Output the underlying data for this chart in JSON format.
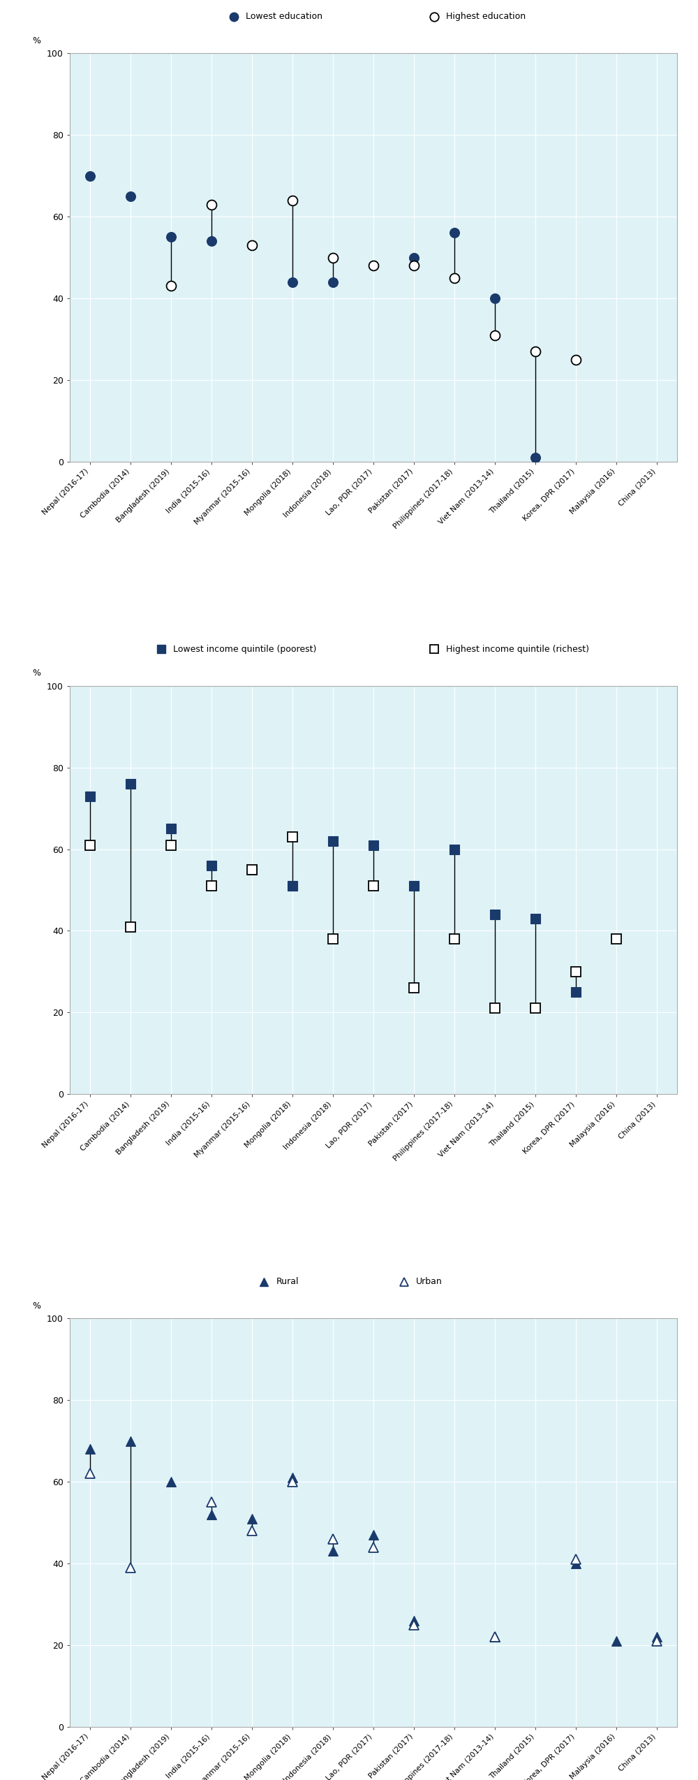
{
  "countries": [
    "Nepal (2016-17)",
    "Cambodia (2014)",
    "Bangladesh (2019)",
    "India (2015-16)",
    "Myanmar (2015-16)",
    "Mongolia (2018)",
    "Indonesia (2018)",
    "Lao, PDR (2017)",
    "Pakistan (2017)",
    "Philippines (2017-18)",
    "Viet Nam (2013-14)",
    "Thailand (2015)",
    "Korea, DPR (2017)",
    "Malaysia (2016)",
    "China (2013)"
  ],
  "panel1": {
    "legend1": "Lowest education",
    "legend2": "Highest education",
    "lowest": [
      70,
      65,
      55,
      54,
      53,
      44,
      44,
      48,
      50,
      56,
      40,
      1,
      null,
      null,
      null
    ],
    "highest": [
      null,
      null,
      43,
      63,
      53,
      64,
      50,
      48,
      48,
      45,
      31,
      27,
      25,
      null,
      null
    ]
  },
  "panel2": {
    "legend1": "Lowest income quintile (poorest)",
    "legend2": "Highest income quintile (richest)",
    "lowest": [
      73,
      76,
      65,
      56,
      55,
      51,
      62,
      61,
      51,
      60,
      44,
      43,
      25,
      null,
      null
    ],
    "highest": [
      61,
      41,
      61,
      51,
      55,
      63,
      38,
      51,
      26,
      38,
      21,
      21,
      30,
      38,
      null
    ]
  },
  "panel3": {
    "legend1": "Rural",
    "legend2": "Urban",
    "rural": [
      68,
      70,
      60,
      52,
      51,
      61,
      43,
      47,
      26,
      null,
      22,
      null,
      40,
      21,
      22
    ],
    "urban": [
      62,
      39,
      null,
      55,
      48,
      60,
      46,
      44,
      25,
      null,
      22,
      null,
      41,
      null,
      21
    ]
  },
  "bg_color": "#dff3f7",
  "dark_blue": "#1a3a6b",
  "legend_bg": "#d9d9d9",
  "yticks": [
    0,
    20,
    40,
    60,
    80,
    100
  ],
  "marker_size": 10,
  "line_color": "black",
  "line_width": 1.0
}
